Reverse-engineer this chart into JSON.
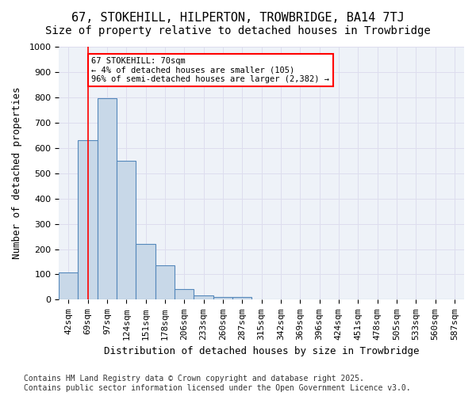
{
  "title_line1": "67, STOKEHILL, HILPERTON, TROWBRIDGE, BA14 7TJ",
  "title_line2": "Size of property relative to detached houses in Trowbridge",
  "xlabel": "Distribution of detached houses by size in Trowbridge",
  "ylabel": "Number of detached properties",
  "bar_color": "#c8d8e8",
  "bar_edge_color": "#5588bb",
  "categories": [
    "42sqm",
    "69sqm",
    "97sqm",
    "124sqm",
    "151sqm",
    "178sqm",
    "206sqm",
    "233sqm",
    "260sqm",
    "287sqm",
    "315sqm",
    "342sqm",
    "369sqm",
    "396sqm",
    "424sqm",
    "451sqm",
    "478sqm",
    "505sqm",
    "533sqm",
    "560sqm",
    "587sqm"
  ],
  "values": [
    108,
    632,
    795,
    548,
    222,
    135,
    42,
    17,
    10,
    11,
    0,
    0,
    0,
    0,
    0,
    0,
    0,
    0,
    0,
    0,
    0
  ],
  "ylim": [
    0,
    1000
  ],
  "yticks": [
    0,
    100,
    200,
    300,
    400,
    500,
    600,
    700,
    800,
    900,
    1000
  ],
  "annotation_text": "67 STOKEHILL: 70sqm\n← 4% of detached houses are smaller (105)\n96% of semi-detached houses are larger (2,382) →",
  "annotation_box_color": "white",
  "annotation_box_edge_color": "red",
  "vline_x": 1,
  "vline_color": "red",
  "grid_color": "#ddddee",
  "background_color": "white",
  "footnote": "Contains HM Land Registry data © Crown copyright and database right 2025.\nContains public sector information licensed under the Open Government Licence v3.0.",
  "title_fontsize": 11,
  "subtitle_fontsize": 10,
  "xlabel_fontsize": 9,
  "ylabel_fontsize": 9,
  "tick_fontsize": 8,
  "footnote_fontsize": 7
}
